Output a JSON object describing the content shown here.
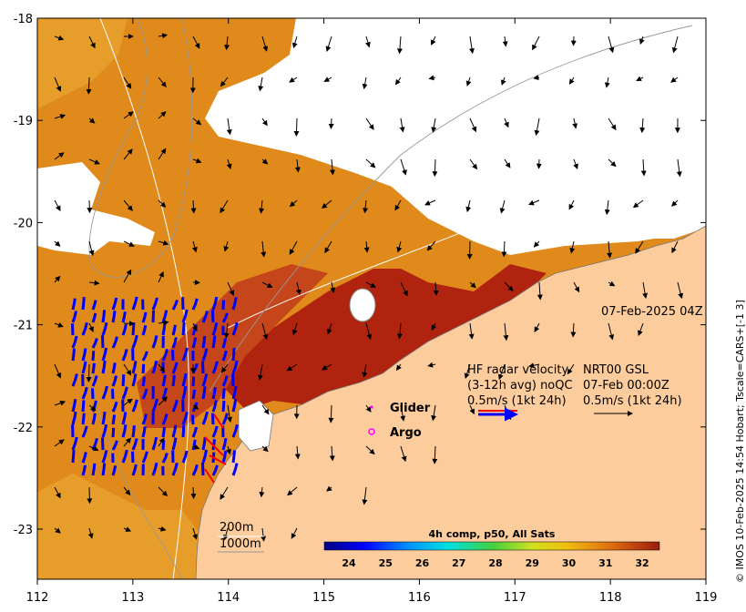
{
  "map": {
    "x_ticks": [
      "112",
      "113",
      "114",
      "115",
      "116",
      "117",
      "118",
      "119"
    ],
    "y_ticks": [
      "-18",
      "-19",
      "-20",
      "-21",
      "-22",
      "-23"
    ],
    "timestamp": "07-Feb-2025 04Z",
    "credit": "© IMOS 10-Feb-2025 14:54 Hobart; Tscale=CARS+[-1 3]",
    "legend": {
      "glider": "Glider",
      "argo": "Argo",
      "hf_line1": "HF radar velocity",
      "hf_line2": "(3-12h avg) noQC",
      "hf_line3": "0.5m/s (1kt 24h)",
      "nrt_line1": "NRT00 GSL",
      "nrt_line2": "07-Feb 00:00Z",
      "nrt_line3": "0.5m/s (1kt 24h)"
    },
    "isobaths": [
      "200m",
      "1000m"
    ],
    "colorbar": {
      "title": "4h comp, p50, All Sats",
      "ticks": [
        "24",
        "25",
        "26",
        "27",
        "28",
        "29",
        "30",
        "31",
        "32"
      ]
    },
    "colors": {
      "land": "#fccc9c",
      "sst_warm": "#e38a16",
      "sst_hot": "#b3220c",
      "hf_radar": "#0000ff",
      "glider": "#ff00ff"
    }
  }
}
